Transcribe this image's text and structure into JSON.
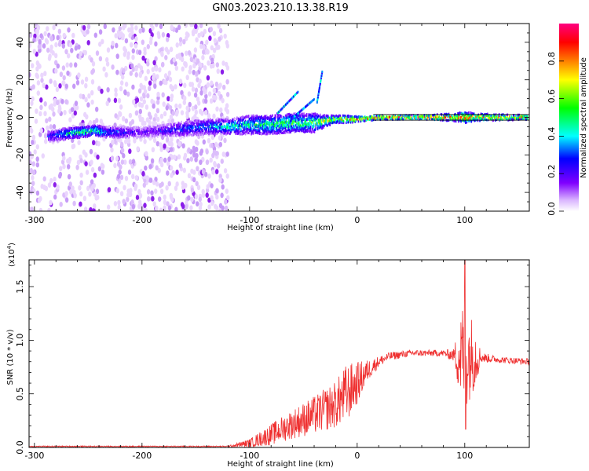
{
  "title": "GN03.2023.210.13.38.R19",
  "chart_data": [
    {
      "type": "heatmap",
      "xlabel": "Height of straight line (km)",
      "ylabel": "Frequency (Hz)",
      "xlim": [
        -305,
        160
      ],
      "ylim": [
        -50,
        50
      ],
      "x_ticks": [
        -300,
        -200,
        -100,
        0,
        100
      ],
      "y_ticks": [
        -40,
        -20,
        0,
        20,
        40
      ],
      "colorbar": {
        "label": "Normalized spectral amplitude",
        "ticks": [
          "0.0",
          "0.2",
          "0.4",
          "0.6",
          "0.8"
        ],
        "range": [
          0,
          1
        ],
        "colormap": [
          "#ffffff",
          "#d9b3ff",
          "#8000ff",
          "#0000ff",
          "#00ffff",
          "#00ff00",
          "#ffff00",
          "#ff8000",
          "#ff0000",
          "#ff0080"
        ]
      },
      "background": {
        "x_range": [
          -305,
          -120
        ],
        "density_peak_x_range": [
          -240,
          -120
        ],
        "amplitude": 0.08
      },
      "ridge": {
        "x": [
          -285,
          -275,
          -260,
          -245,
          -235,
          -200,
          -180,
          -160,
          -140,
          -120,
          -100,
          -80,
          -60,
          -40,
          -30,
          -20,
          -10,
          0,
          20,
          60,
          90,
          100,
          110,
          160
        ],
        "frequency": [
          -10,
          -9,
          -8,
          -7,
          -8,
          -8,
          -7,
          -6,
          -5,
          -5,
          -4,
          -4,
          -3,
          -3,
          -2,
          -1,
          -1,
          -1,
          0,
          0,
          0,
          0,
          0,
          0
        ],
        "amplitude": [
          0.3,
          0.45,
          0.55,
          0.55,
          0.4,
          0.2,
          0.3,
          0.35,
          0.4,
          0.5,
          0.5,
          0.55,
          0.6,
          0.6,
          0.75,
          0.8,
          0.85,
          0.95,
          0.95,
          0.95,
          0.9,
          0.9,
          0.85,
          0.85
        ],
        "bandwidth": [
          3,
          3,
          3,
          3,
          3,
          3,
          3,
          4,
          4,
          4,
          5,
          5,
          5,
          5,
          3,
          2,
          2,
          1.5,
          1.2,
          1.2,
          2,
          3,
          2,
          1.2
        ]
      },
      "streaks": [
        {
          "x0": -75,
          "f0": 2,
          "x1": -55,
          "f1": 14
        },
        {
          "x0": -60,
          "f0": 0,
          "x1": -40,
          "f1": 10
        },
        {
          "x0": -38,
          "f0": 8,
          "x1": -33,
          "f1": 25
        }
      ]
    },
    {
      "type": "line",
      "xlabel": "Height of straight line (km)",
      "ylabel": "SNR (10 * v/v)",
      "scale_note": "(x10",
      "scale_exp": "4",
      "scale_close": ")",
      "xlim": [
        -305,
        160
      ],
      "ylim": [
        0,
        1.75
      ],
      "x_ticks": [
        -300,
        -200,
        -100,
        0,
        100
      ],
      "y_ticks": [
        "0.0",
        "0.5",
        "1.0",
        "1.5"
      ],
      "line_color": "#ef3030",
      "envelope": {
        "x": [
          -305,
          -200,
          -120,
          -100,
          -80,
          -60,
          -40,
          -20,
          -10,
          0,
          10,
          20,
          30,
          50,
          80,
          90,
          95,
          100,
          105,
          110,
          115,
          130,
          160
        ],
        "mean": [
          0.01,
          0.01,
          0.01,
          0.04,
          0.12,
          0.22,
          0.3,
          0.4,
          0.5,
          0.6,
          0.72,
          0.8,
          0.85,
          0.88,
          0.88,
          0.86,
          0.86,
          0.87,
          0.86,
          0.86,
          0.84,
          0.82,
          0.8
        ],
        "noise": [
          0.005,
          0.005,
          0.005,
          0.04,
          0.1,
          0.14,
          0.18,
          0.22,
          0.28,
          0.2,
          0.1,
          0.05,
          0.04,
          0.03,
          0.03,
          0.06,
          0.4,
          0.55,
          0.4,
          0.3,
          0.05,
          0.03,
          0.03
        ]
      },
      "peak": {
        "x": 100,
        "y": 1.75
      },
      "dip": {
        "x": 100,
        "y": 0.17
      }
    }
  ]
}
